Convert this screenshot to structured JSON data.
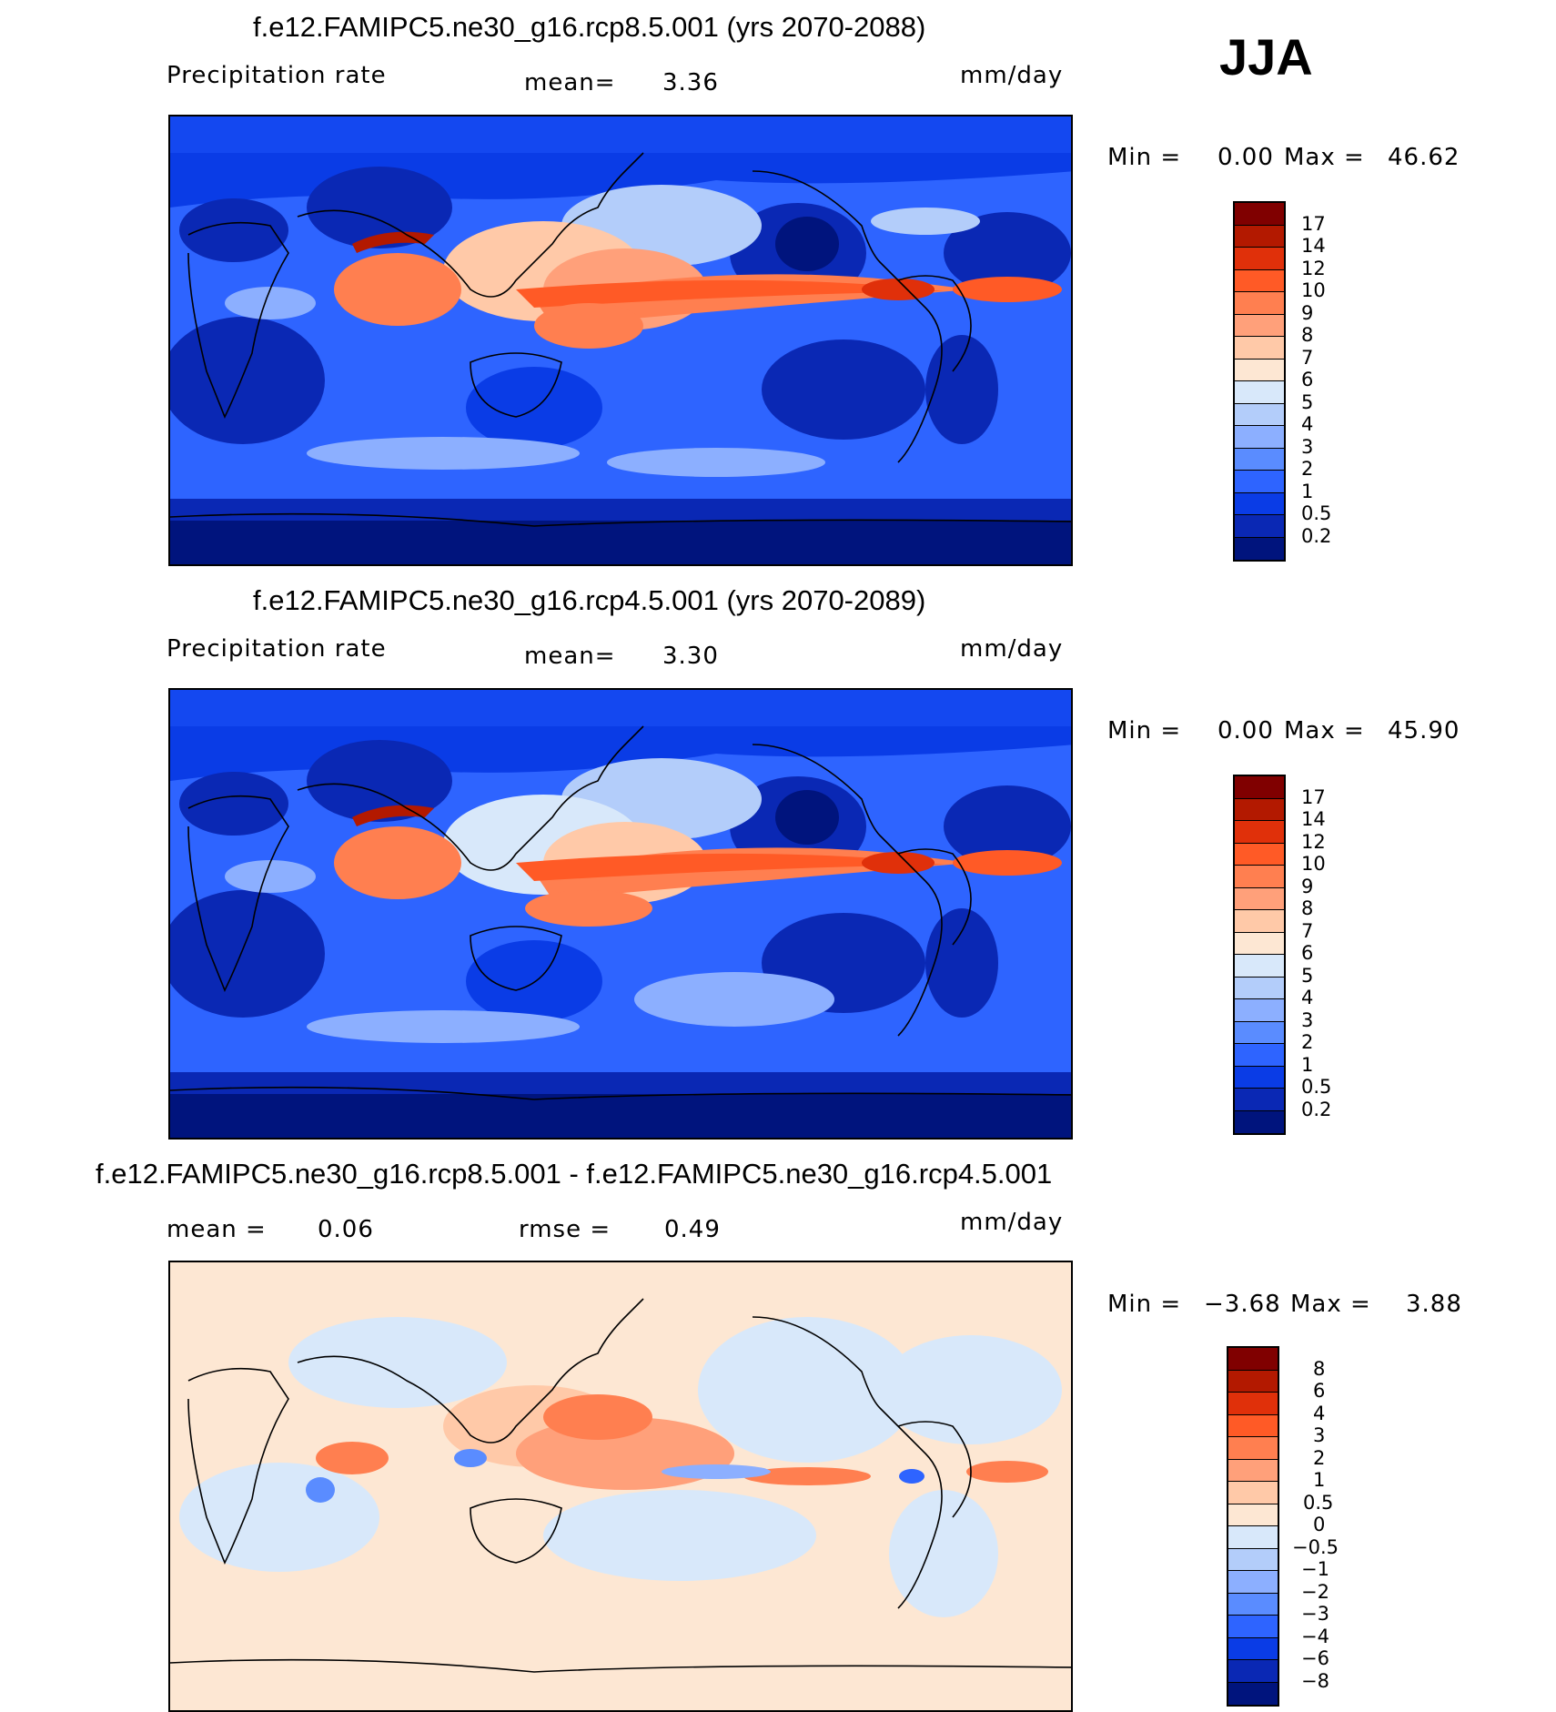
{
  "season": "JJA",
  "panels": [
    {
      "title": "f.e12.FAMIPC5.ne30_g16.rcp8.5.001 (yrs 2070-2088)",
      "left_label": "Precipitation rate",
      "mid_label": "mean=",
      "mid_value": "3.36",
      "unit": "mm/day",
      "min_label": "Min =",
      "min_value": "0.00",
      "max_label": "Max =",
      "max_value": "46.62"
    },
    {
      "title": "f.e12.FAMIPC5.ne30_g16.rcp4.5.001 (yrs 2070-2089)",
      "left_label": "Precipitation rate",
      "mid_label": "mean=",
      "mid_value": "3.30",
      "unit": "mm/day",
      "min_label": "Min =",
      "min_value": "0.00",
      "max_label": "Max =",
      "max_value": "45.90"
    },
    {
      "title": "f.e12.FAMIPC5.ne30_g16.rcp8.5.001 - f.e12.FAMIPC5.ne30_g16.rcp4.5.001",
      "left_label": "mean =",
      "left_value": "0.06",
      "mid_label": "rmse =",
      "mid_value": "0.49",
      "unit": "mm/day",
      "min_label": "Min =",
      "min_value": "−3.68",
      "max_label": "Max =",
      "max_value": "3.88"
    }
  ],
  "colorbars": {
    "precip": {
      "labels": [
        "17",
        "14",
        "12",
        "10",
        "9",
        "8",
        "7",
        "6",
        "5",
        "4",
        "3",
        "2",
        "1",
        "0.5",
        "0.2"
      ],
      "colors": [
        "#800000",
        "#b31900",
        "#e0300a",
        "#ff5a26",
        "#ff7f50",
        "#ffa07a",
        "#ffc9a8",
        "#fde7d3",
        "#d8e8fa",
        "#b3cdfa",
        "#8cafff",
        "#5a8cff",
        "#2e64ff",
        "#0a3ce6",
        "#0a28b4",
        "#00147d"
      ]
    },
    "diff": {
      "labels": [
        "8",
        "6",
        "4",
        "3",
        "2",
        "1",
        "0.5",
        "0",
        "−0.5",
        "−1",
        "−2",
        "−3",
        "−4",
        "−6",
        "−8"
      ],
      "colors": [
        "#800000",
        "#b31900",
        "#e0300a",
        "#ff5a26",
        "#ff7f50",
        "#ffa07a",
        "#ffc9a8",
        "#fde7d3",
        "#d8e8fa",
        "#b3cdfa",
        "#8cafff",
        "#5a8cff",
        "#2e64ff",
        "#0a3ce6",
        "#0a28b4",
        "#00147d"
      ]
    }
  }
}
